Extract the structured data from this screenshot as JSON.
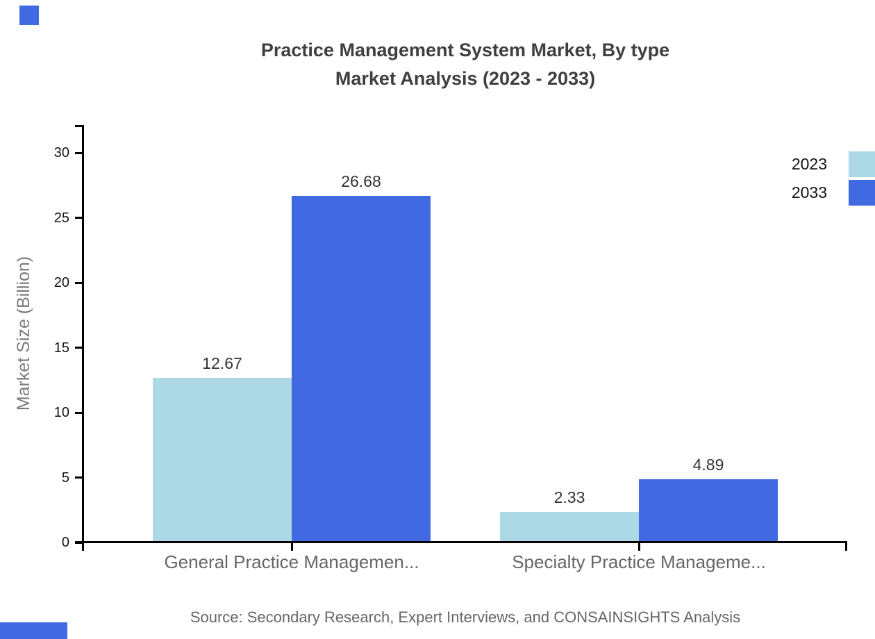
{
  "title": {
    "line1": "Practice Management System Market, By type",
    "line2": "Market Analysis (2023 - 2033)"
  },
  "chart_data": {
    "type": "bar",
    "categories": [
      "General Practice Managemen...",
      "Specialty Practice Manageme..."
    ],
    "series": [
      {
        "name": "2023",
        "color": "#ADD8E6",
        "values": [
          12.67,
          2.33
        ]
      },
      {
        "name": "2033",
        "color": "#4169E1",
        "values": [
          26.68,
          4.89
        ]
      }
    ],
    "title": "Practice Management System Market, By type Market Analysis (2023 - 2033)",
    "xlabel": "",
    "ylabel": "Market Size (Billion)",
    "yticks": [
      0,
      5,
      10,
      15,
      20,
      25,
      30
    ],
    "ylim": [
      0,
      32
    ],
    "grid": false,
    "legend_position": "top-right",
    "value_label_decimals": 2
  },
  "source": "Source: Secondary Research, Expert Interviews, and CONSAINSIGHTS Analysis",
  "decorations": {
    "corner_color": "#4169E1"
  }
}
